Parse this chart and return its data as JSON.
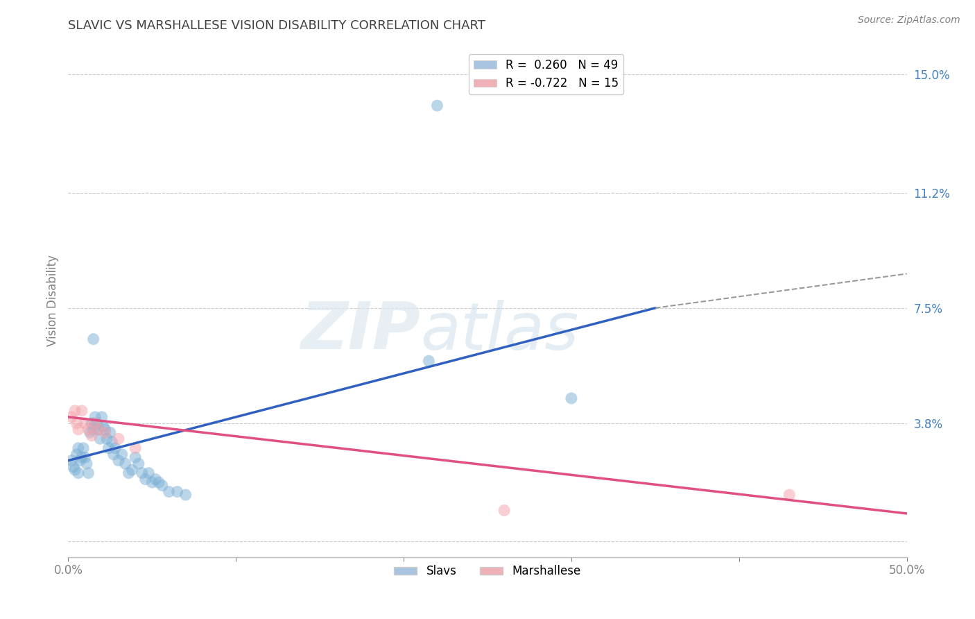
{
  "title": "SLAVIC VS MARSHALLESE VISION DISABILITY CORRELATION CHART",
  "source": "Source: ZipAtlas.com",
  "xlabel": "",
  "ylabel": "Vision Disability",
  "xlim": [
    0.0,
    0.5
  ],
  "ylim": [
    -0.005,
    0.16
  ],
  "ytick_positions": [
    0.0,
    0.038,
    0.075,
    0.112,
    0.15
  ],
  "yticklabels": [
    "",
    "3.8%",
    "7.5%",
    "11.2%",
    "15.0%"
  ],
  "legend_items": [
    {
      "label": "R =  0.260   N = 49",
      "color": "#a8c4e0"
    },
    {
      "label": "R = -0.722   N = 15",
      "color": "#f0b0b8"
    }
  ],
  "slavs_color": "#7bafd4",
  "marshallese_color": "#f4a0a8",
  "slavs_line_color": "#3060c0",
  "marshallese_line_color": "#e05080",
  "slavs_points": [
    [
      0.002,
      0.026
    ],
    [
      0.003,
      0.024
    ],
    [
      0.004,
      0.023
    ],
    [
      0.005,
      0.028
    ],
    [
      0.006,
      0.022
    ],
    [
      0.006,
      0.03
    ],
    [
      0.007,
      0.026
    ],
    [
      0.008,
      0.027
    ],
    [
      0.009,
      0.03
    ],
    [
      0.01,
      0.027
    ],
    [
      0.011,
      0.025
    ],
    [
      0.012,
      0.022
    ],
    [
      0.013,
      0.035
    ],
    [
      0.014,
      0.038
    ],
    [
      0.015,
      0.036
    ],
    [
      0.016,
      0.04
    ],
    [
      0.017,
      0.038
    ],
    [
      0.018,
      0.036
    ],
    [
      0.019,
      0.033
    ],
    [
      0.02,
      0.04
    ],
    [
      0.021,
      0.037
    ],
    [
      0.022,
      0.036
    ],
    [
      0.023,
      0.033
    ],
    [
      0.024,
      0.03
    ],
    [
      0.025,
      0.035
    ],
    [
      0.026,
      0.032
    ],
    [
      0.027,
      0.028
    ],
    [
      0.028,
      0.03
    ],
    [
      0.03,
      0.026
    ],
    [
      0.032,
      0.028
    ],
    [
      0.034,
      0.025
    ],
    [
      0.036,
      0.022
    ],
    [
      0.038,
      0.023
    ],
    [
      0.04,
      0.027
    ],
    [
      0.042,
      0.025
    ],
    [
      0.044,
      0.022
    ],
    [
      0.046,
      0.02
    ],
    [
      0.048,
      0.022
    ],
    [
      0.05,
      0.019
    ],
    [
      0.052,
      0.02
    ],
    [
      0.054,
      0.019
    ],
    [
      0.056,
      0.018
    ],
    [
      0.06,
      0.016
    ],
    [
      0.065,
      0.016
    ],
    [
      0.07,
      0.015
    ],
    [
      0.22,
      0.14
    ],
    [
      0.3,
      0.046
    ],
    [
      0.015,
      0.065
    ],
    [
      0.215,
      0.058
    ]
  ],
  "marshallese_points": [
    [
      0.002,
      0.04
    ],
    [
      0.004,
      0.042
    ],
    [
      0.005,
      0.038
    ],
    [
      0.006,
      0.036
    ],
    [
      0.008,
      0.042
    ],
    [
      0.01,
      0.038
    ],
    [
      0.012,
      0.036
    ],
    [
      0.014,
      0.034
    ],
    [
      0.016,
      0.038
    ],
    [
      0.018,
      0.036
    ],
    [
      0.022,
      0.035
    ],
    [
      0.03,
      0.033
    ],
    [
      0.04,
      0.03
    ],
    [
      0.26,
      0.01
    ],
    [
      0.43,
      0.015
    ]
  ],
  "slavs_line": {
    "x0": 0.0,
    "y0": 0.026,
    "x1": 0.35,
    "y1": 0.075
  },
  "slavs_line_dashed": {
    "x0": 0.35,
    "y0": 0.075,
    "x1": 0.5,
    "y1": 0.086
  },
  "marsh_line": {
    "x0": 0.0,
    "y0": 0.04,
    "x1": 0.5,
    "y1": 0.009
  },
  "watermark_zip": "ZIP",
  "watermark_atlas": "atlas",
  "background_color": "#ffffff",
  "grid_color": "#cccccc",
  "title_color": "#404040",
  "axis_label_color": "#808080",
  "tick_label_color_right": "#4080c0",
  "tick_label_color_left": "#808080"
}
